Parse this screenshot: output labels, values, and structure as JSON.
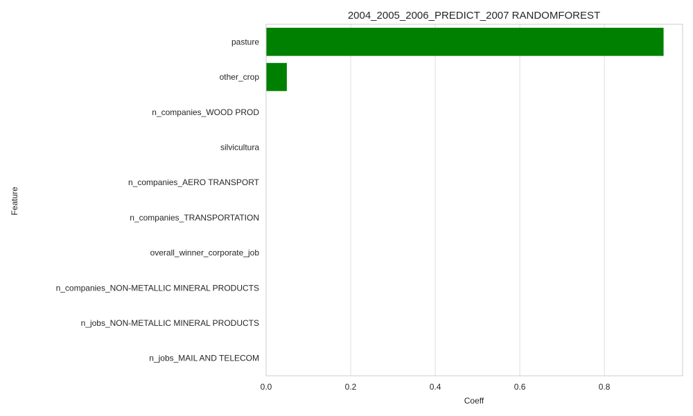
{
  "chart_data": {
    "type": "bar",
    "orientation": "horizontal",
    "title": "2004_2005_2006_PREDICT_2007 RANDOMFOREST",
    "xlabel": "Coeff",
    "ylabel": "Feature",
    "categories": [
      "pasture",
      "other_crop",
      "n_companies_WOOD PROD",
      "silvicultura",
      "n_companies_AERO TRANSPORT",
      "n_companies_TRANSPORTATION",
      "overall_winner_corporate_job",
      "n_companies_NON-METALLIC MINERAL PRODUCTS",
      "n_jobs_NON-METALLIC MINERAL PRODUCTS",
      "n_jobs_MAIL AND TELECOM"
    ],
    "values": [
      0.94,
      0.049,
      0.0,
      0.0,
      0.0,
      0.0,
      0.0,
      0.0,
      0.0,
      0.0
    ],
    "xlim": [
      0,
      0.985
    ],
    "xticks": [
      0.0,
      0.2,
      0.4,
      0.6,
      0.8
    ],
    "xtick_labels": [
      "0.0",
      "0.2",
      "0.4",
      "0.6",
      "0.8"
    ],
    "grid": "vertical",
    "bar_color": "#008000",
    "grid_color": "#dddddd",
    "spine_color": "#cccccc"
  }
}
